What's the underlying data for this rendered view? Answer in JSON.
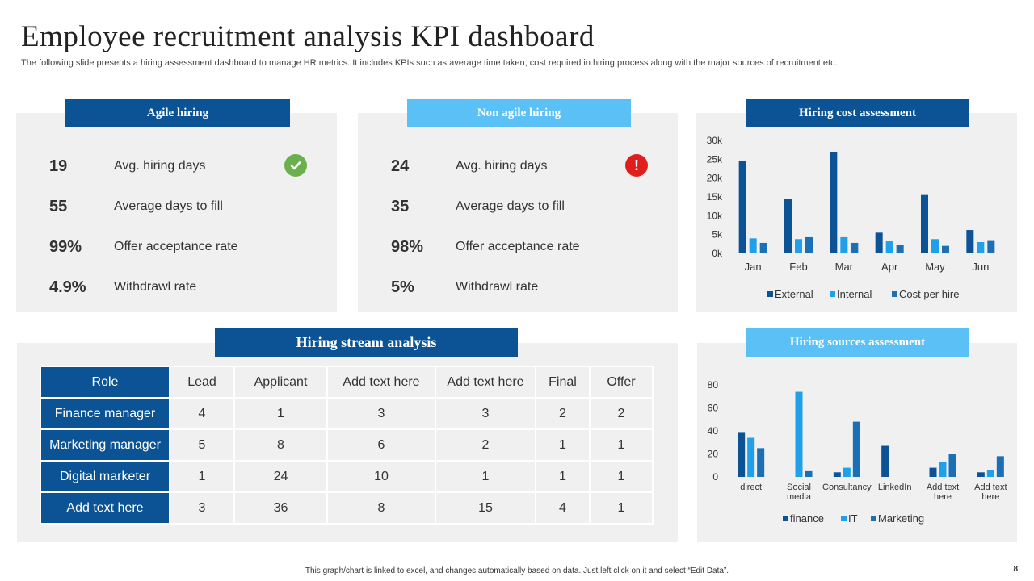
{
  "title": "Employee recruitment analysis KPI dashboard",
  "subtitle": "The following slide presents a hiring assessment dashboard to manage HR metrics. It includes KPIs such as average time taken, cost required in hiring process along with the major sources of recruitment etc.",
  "agile": {
    "header": "Agile hiring",
    "status_icon": "check-circle-icon",
    "status_color": "#6ab04c",
    "kpis": [
      {
        "value": "19",
        "label": "Avg. hiring days"
      },
      {
        "value": "55",
        "label": "Average days to fill"
      },
      {
        "value": "99%",
        "label": "Offer acceptance rate"
      },
      {
        "value": "4.9%",
        "label": "Withdrawl rate"
      }
    ]
  },
  "nonagile": {
    "header": "Non agile hiring",
    "status_icon": "alert-circle-icon",
    "status_color": "#e01e1e",
    "kpis": [
      {
        "value": "24",
        "label": "Avg. hiring days"
      },
      {
        "value": "35",
        "label": "Average days to fill"
      },
      {
        "value": "98%",
        "label": "Offer acceptance rate"
      },
      {
        "value": "5%",
        "label": "Withdrawl rate"
      }
    ]
  },
  "stream": {
    "header": "Hiring stream analysis",
    "columns": [
      "Role",
      "Lead",
      "Applicant",
      "Add text here",
      "Add text here",
      "Final",
      "Offer"
    ],
    "rows": [
      [
        "Finance manager",
        "4",
        "1",
        "3",
        "3",
        "2",
        "2"
      ],
      [
        "Marketing manager",
        "5",
        "8",
        "6",
        "2",
        "1",
        "1"
      ],
      [
        "Digital marketer",
        "1",
        "24",
        "10",
        "1",
        "1",
        "1"
      ],
      [
        "Add text here",
        "3",
        "36",
        "8",
        "15",
        "4",
        "1"
      ]
    ]
  },
  "cost_header": "Hiring cost assessment",
  "sources_header": "Hiring sources assessment",
  "colors": {
    "dark": "#0b5394",
    "light": "#1fa0e8",
    "mid": "#1a6fb5"
  },
  "chart_data": [
    {
      "type": "bar",
      "categories": [
        "Jan",
        "Feb",
        "Mar",
        "Apr",
        "May",
        "Jun"
      ],
      "series": [
        {
          "name": "External",
          "values": [
            24500,
            14500,
            27000,
            5500,
            15500,
            6200
          ]
        },
        {
          "name": "Internal",
          "values": [
            4000,
            3800,
            4300,
            3200,
            3800,
            3000
          ]
        },
        {
          "name": "Cost per hire",
          "values": [
            2800,
            4300,
            2800,
            2200,
            2000,
            3300
          ]
        }
      ],
      "yticks": [
        "0k",
        "5k",
        "10k",
        "15k",
        "20k",
        "25k",
        "30k"
      ],
      "ylim": [
        0,
        30000
      ],
      "legend": "bottom"
    },
    {
      "type": "bar",
      "categories": [
        "direct",
        "Social media",
        "Consultancy",
        "LinkedIn",
        "Add text here",
        "Add text here"
      ],
      "series": [
        {
          "name": "finance",
          "values": [
            39,
            0,
            4,
            27,
            8,
            4
          ]
        },
        {
          "name": "IT",
          "values": [
            34,
            74,
            8,
            0,
            13,
            6
          ]
        },
        {
          "name": "Marketing",
          "values": [
            25,
            5,
            48,
            0,
            20,
            18
          ]
        }
      ],
      "yticks": [
        "0",
        "20",
        "40",
        "60",
        "80"
      ],
      "ylim": [
        0,
        80
      ],
      "legend": "bottom"
    }
  ],
  "footer": "This graph/chart is linked to excel, and changes automatically based on data. Just left click on it and select “Edit Data”.",
  "page_number": "8"
}
